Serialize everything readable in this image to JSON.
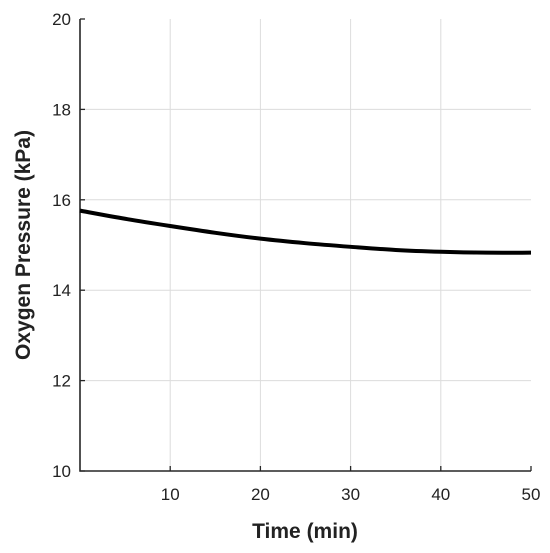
{
  "chart_data": {
    "type": "line",
    "xlabel": "Time (min)",
    "ylabel": "Oxygen Pressure (kPa)",
    "xlim": [
      0,
      50
    ],
    "ylim": [
      10,
      20
    ],
    "xticks": [
      10,
      20,
      30,
      40,
      50
    ],
    "yticks": [
      10,
      12,
      14,
      16,
      18,
      20
    ],
    "grid": true,
    "colors": {
      "line": "#000000",
      "grid": "#dcdcdc",
      "axis": "#262626"
    },
    "series": [
      {
        "x": [
          0,
          5,
          10,
          15,
          20,
          25,
          30,
          35,
          40,
          45,
          50
        ],
        "y": [
          15.76,
          15.58,
          15.42,
          15.27,
          15.14,
          15.04,
          14.96,
          14.89,
          14.85,
          14.83,
          14.83
        ]
      }
    ]
  }
}
